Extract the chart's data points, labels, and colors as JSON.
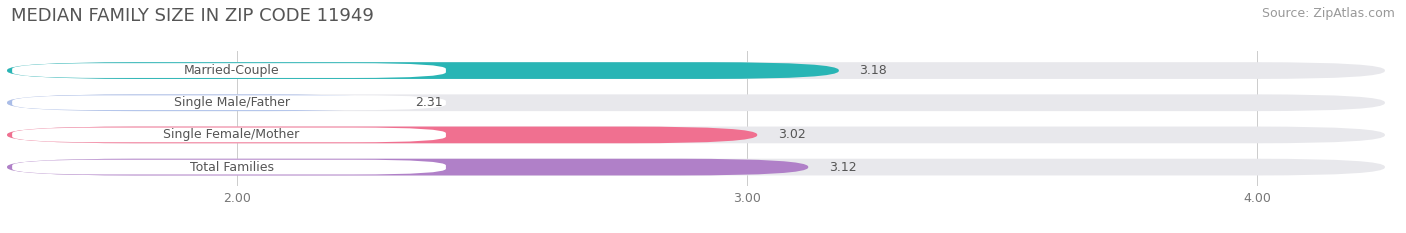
{
  "title": "MEDIAN FAMILY SIZE IN ZIP CODE 11949",
  "source": "Source: ZipAtlas.com",
  "categories": [
    "Married-Couple",
    "Single Male/Father",
    "Single Female/Mother",
    "Total Families"
  ],
  "values": [
    3.18,
    2.31,
    3.02,
    3.12
  ],
  "bar_colors": [
    "#29b5b5",
    "#aabde8",
    "#f07090",
    "#b080c8"
  ],
  "background_color": "#ffffff",
  "bar_bg_color": "#e8e8ec",
  "text_color": "#555555",
  "source_color": "#999999",
  "value_color": "#555555",
  "xlim_min": 1.55,
  "xlim_max": 4.25,
  "xticks": [
    2.0,
    3.0,
    4.0
  ],
  "xtick_labels": [
    "2.00",
    "3.00",
    "4.00"
  ],
  "title_fontsize": 13,
  "source_fontsize": 9,
  "label_fontsize": 9,
  "value_fontsize": 9
}
